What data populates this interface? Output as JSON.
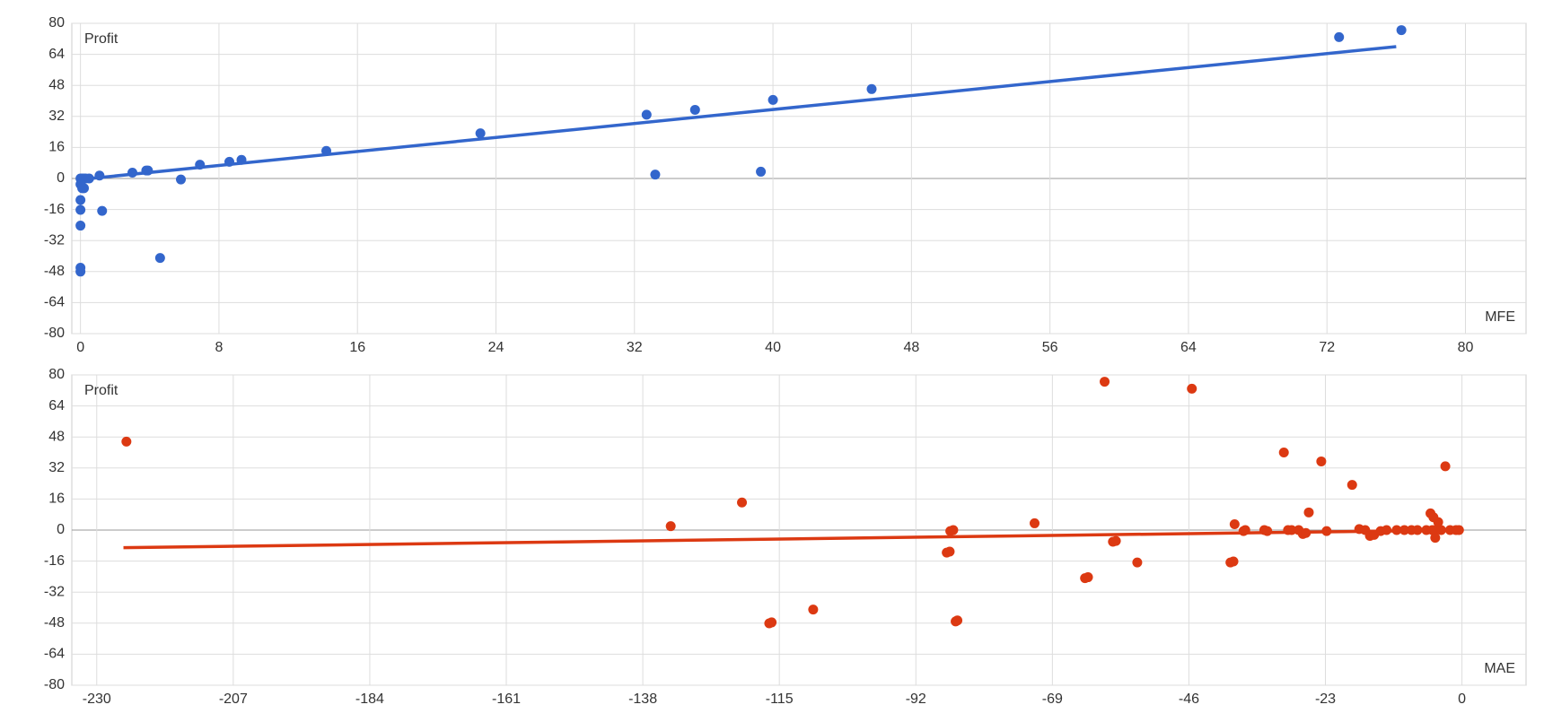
{
  "chart_data": [
    {
      "type": "scatter",
      "y_label": "Profit",
      "x_label": "MFE",
      "xlim": [
        -0.5,
        83.5
      ],
      "xticks": [
        0,
        8,
        16,
        24,
        32,
        40,
        48,
        56,
        64,
        72,
        80
      ],
      "ylim": [
        -80,
        80
      ],
      "yticks": [
        -80,
        -64,
        -48,
        -32,
        -16,
        0,
        16,
        32,
        48,
        64,
        80
      ],
      "grid": true,
      "points": {
        "color": "#3366cc",
        "x": [
          76.3,
          72.7,
          45.7,
          40.0,
          35.5,
          32.7,
          33.2,
          39.3,
          23.1,
          14.2,
          9.3,
          8.6,
          6.9,
          5.8,
          3.9,
          3.8,
          3.0,
          1.1,
          1.25,
          4.6,
          0,
          0,
          0,
          0,
          0,
          0.1,
          0.2,
          0,
          0.1,
          0.2,
          0.3,
          0.5,
          0
        ],
        "y": [
          76.5,
          72.9,
          46.1,
          40.5,
          35.4,
          32.9,
          2.0,
          3.5,
          23.3,
          14.2,
          9.6,
          8.6,
          7.1,
          -0.5,
          4.1,
          4.1,
          3.0,
          1.5,
          -16.7,
          -41,
          -24.3,
          -16.2,
          -11.1,
          -46,
          -48,
          -5,
          -5,
          0,
          0,
          0,
          0,
          0,
          -3
        ]
      },
      "trendline": {
        "color": "#3366cc",
        "x": [
          0,
          76
        ],
        "y": [
          -0.5,
          68
        ]
      }
    },
    {
      "type": "scatter",
      "y_label": "Profit",
      "x_label": "MAE",
      "xlim": [
        -234.2,
        10.8
      ],
      "xticks": [
        -230,
        -207,
        -184,
        -161,
        -138,
        -115,
        -92,
        -69,
        -46,
        -23,
        0
      ],
      "ylim": [
        -80,
        80
      ],
      "yticks": [
        -80,
        -64,
        -48,
        -32,
        -16,
        0,
        16,
        32,
        48,
        64,
        80
      ],
      "grid": true,
      "points": {
        "color": "#dc3912",
        "x": [
          -225,
          -133.3,
          -121.3,
          -116.3,
          -116.7,
          -109.3,
          -86.8,
          -86.3,
          -86.2,
          -85.7,
          -85.3,
          -85,
          -72,
          -63.5,
          -63,
          -60.2,
          -58.8,
          -58.3,
          -54.7,
          -45.5,
          -39,
          -38.5,
          -38.3,
          -36.8,
          -36.5,
          -33.3,
          -32.8,
          -30,
          -29.3,
          -28.7,
          -27.5,
          -26.8,
          -26.3,
          -25.8,
          -23.7,
          -22.8,
          -18.5,
          -17.3,
          -16.3,
          -15.5,
          -14.8,
          -13.7,
          -12.7,
          -11,
          -9.7,
          -8.5,
          -7.5,
          -6,
          -5,
          -4.5,
          -3.5,
          -2,
          -1,
          -0.5,
          -5.3,
          -4.8,
          -4.5,
          -4,
          -2.8
        ],
        "y": [
          45.6,
          2.0,
          14.2,
          -47.6,
          -48.1,
          -41,
          -11.6,
          -11.1,
          -0.5,
          0,
          -47.1,
          -46.6,
          3.5,
          -24.8,
          -24.3,
          76.5,
          -6,
          -5.6,
          -16.7,
          72.9,
          -16.7,
          -16.2,
          3,
          -0.5,
          0,
          0,
          -0.5,
          40,
          0,
          0,
          0,
          -2,
          -1.5,
          9.1,
          35.4,
          -0.5,
          23.3,
          0.5,
          0,
          -3,
          -2.5,
          -0.5,
          0,
          0,
          0,
          0,
          0,
          0,
          0,
          0,
          0,
          0,
          0,
          0,
          8.6,
          6.6,
          -4,
          4.1,
          32.9
        ]
      },
      "trendline": {
        "color": "#dc3912",
        "x": [
          -225.5,
          -0.5
        ],
        "y": [
          -9.1,
          0
        ]
      }
    }
  ]
}
